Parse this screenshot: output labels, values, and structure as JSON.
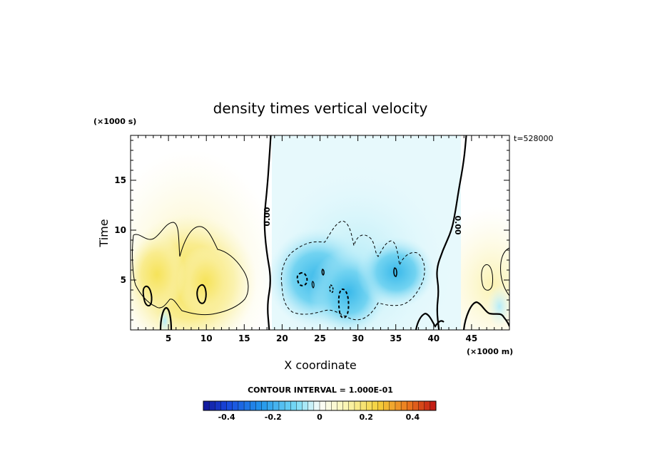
{
  "chart_data": {
    "type": "heatmap",
    "title": "density times vertical velocity",
    "xlabel": "X coordinate",
    "ylabel": "Time",
    "x_unit": "(×1000 m)",
    "y_unit": "(×1000 s)",
    "time_stamp": "t=528000",
    "xlim": [
      0,
      50
    ],
    "ylim": [
      0,
      19.5
    ],
    "x_ticks": [
      5,
      10,
      15,
      20,
      25,
      30,
      35,
      40,
      45
    ],
    "x_tick_labels": [
      "5",
      "10",
      "15",
      "20",
      "25",
      "30",
      "35",
      "40",
      "45"
    ],
    "y_ticks": [
      5,
      10,
      15
    ],
    "y_tick_labels": [
      "5",
      "10",
      "15"
    ],
    "contour_line_labels": [
      "0.00",
      "0.00"
    ],
    "contour_interval_text": "CONTOUR INTERVAL = 1.000E-01",
    "colorbar": {
      "min": -0.5,
      "max": 0.5,
      "ticks": [
        -0.4,
        -0.2,
        0,
        0.2,
        0.4
      ],
      "tick_labels": [
        "-0.4",
        "-0.2",
        "0",
        "0.2",
        "0.4"
      ]
    },
    "zero_contours": [
      {
        "points": [
          [
            18.5,
            19.5
          ],
          [
            18.3,
            17
          ],
          [
            18.0,
            14
          ],
          [
            17.6,
            11
          ],
          [
            17.9,
            8
          ],
          [
            18.6,
            5
          ],
          [
            18.0,
            2.5
          ],
          [
            18.3,
            0
          ]
        ]
      },
      {
        "points": [
          [
            44.3,
            19.5
          ],
          [
            44.0,
            17
          ],
          [
            43.3,
            14
          ],
          [
            42.9,
            12
          ],
          [
            42.4,
            10
          ],
          [
            41.2,
            8
          ],
          [
            40.3,
            6
          ],
          [
            40.7,
            4
          ],
          [
            40.4,
            2
          ],
          [
            40.7,
            0
          ]
        ]
      }
    ],
    "features": [
      {
        "kind": "positive",
        "center": [
          4.0,
          6.0
        ],
        "peak": 0.2
      },
      {
        "kind": "positive",
        "center": [
          9.7,
          6.0
        ],
        "peak": 0.2
      },
      {
        "kind": "positive",
        "center": [
          47.5,
          5.0
        ],
        "peak": 0.1
      },
      {
        "kind": "negative",
        "center": [
          22.5,
          5.5
        ],
        "peak": -0.2
      },
      {
        "kind": "negative",
        "center": [
          28.0,
          3.0
        ],
        "peak": -0.25
      },
      {
        "kind": "negative",
        "center": [
          34.5,
          6.0
        ],
        "peak": -0.2
      }
    ],
    "colors": {
      "negative_strong": "#1a2fd6",
      "negative_mid": "#3fb7e8",
      "negative_weak": "#d9f6fb",
      "positive_weak": "#fbf7cc",
      "positive_mid": "#f7e66a",
      "positive_strong": "#e0201a"
    }
  }
}
